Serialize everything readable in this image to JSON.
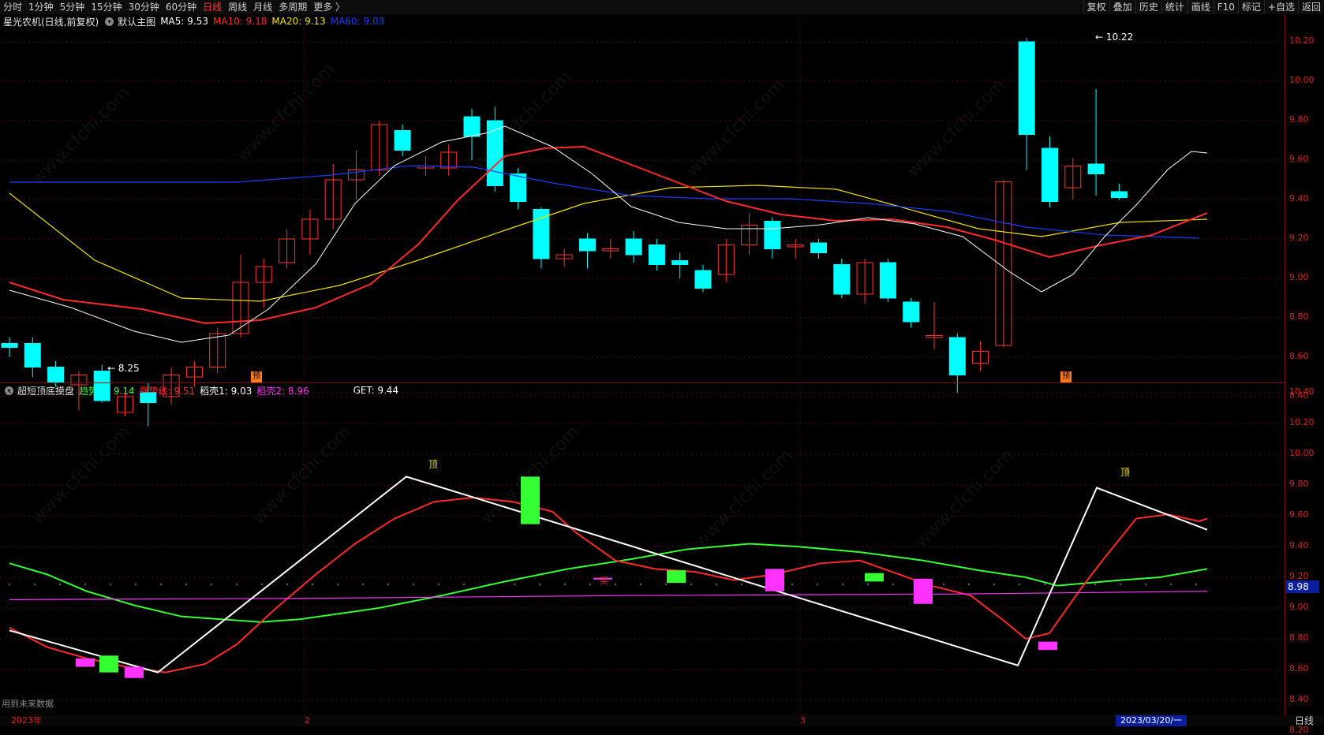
{
  "periods": [
    "分时",
    "1分钟",
    "5分钟",
    "15分钟",
    "30分钟",
    "60分钟",
    "日线",
    "周线",
    "月线",
    "多周期",
    "更多 〉"
  ],
  "active_period": "日线",
  "tools": [
    "复权",
    "叠加",
    "历史",
    "统计",
    "画线",
    "F10",
    "+自选",
    "返回"
  ],
  "tool_extra": "标记",
  "main_legend": {
    "stock": "星光农机(日线,前复权)",
    "chart_name": "默认主图",
    "items": [
      {
        "label": "MA5: 9.53",
        "color": "#ffffff"
      },
      {
        "label": "MA10: 9.18",
        "color": "#ff2a2a"
      },
      {
        "label": "MA20: 9.13",
        "color": "#f0e000"
      },
      {
        "label": "MA60: 9.03",
        "color": "#1a3cff"
      }
    ]
  },
  "sub_legend": {
    "name": "超短顶底摸盘",
    "items": [
      {
        "label": "趋势线: 9.14",
        "color": "#33ff33"
      },
      {
        "label": "强势线: 9.51",
        "color": "#ff2a2a"
      },
      {
        "label": "稻壳1: 9.03",
        "color": "#ffffff"
      },
      {
        "label": "稻壳2: 8.96",
        "color": "#ff33ff"
      },
      {
        "label": "GET: 9.44",
        "color": "#ffffff"
      }
    ]
  },
  "main_axis": [
    "10.20",
    "10.00",
    "9.80",
    "9.60",
    "9.40",
    "9.20",
    "9.00",
    "8.80",
    "8.60",
    "8.40"
  ],
  "sub_axis": [
    "10.40",
    "10.20",
    "10.00",
    "9.80",
    "9.60",
    "9.40",
    "9.20",
    "9.00",
    "8.80",
    "8.60",
    "8.40",
    "8.20"
  ],
  "annotations": {
    "high": "10.22",
    "low": "8.25",
    "top_label": "顶",
    "buy_label": "买",
    "event_label": "预"
  },
  "price_tag": "8.98",
  "bottom": {
    "year": "2023年",
    "m2": "2",
    "m3": "3",
    "cursor_date": "2023/03/20/一",
    "period": "日线"
  },
  "note": "用到未来数据",
  "watermark": "www.cfchi.com",
  "colors": {
    "up": "#ff3232",
    "down": "#00ffff",
    "grid": "#7a1010"
  }
}
